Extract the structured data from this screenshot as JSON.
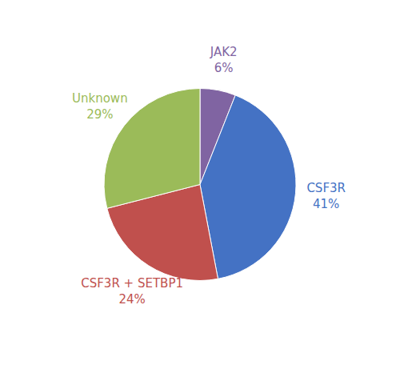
{
  "chart_data": {
    "type": "pie",
    "categories": [
      "JAK2",
      "CSF3R",
      "CSF3R + SETBP1",
      "Unknown"
    ],
    "values": [
      6,
      41,
      24,
      29
    ],
    "value_labels": [
      "6%",
      "41%",
      "24%",
      "29%"
    ],
    "colors": [
      "#8064A2",
      "#4472C4",
      "#C0504D",
      "#9BBB59"
    ],
    "data_labels": true
  }
}
